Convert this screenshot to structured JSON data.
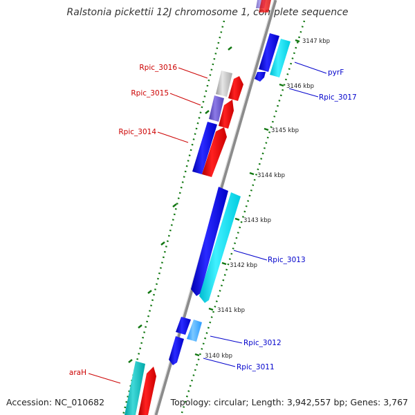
{
  "title": "Ralstonia pickettii 12J chromosome 1, complete sequence",
  "accession_text": "Accession: NC_010682",
  "summary_text": "Topology: circular; Length: 3,942,557 bp; Genes: 3,767",
  "colors": {
    "forward_label": "#cc0000",
    "reverse_label": "#0000cc",
    "backbone": "#8c8c8c",
    "tick": "#117711"
  },
  "tick_labels": [
    "3147 kbp",
    "3146 kbp",
    "3145 kbp",
    "3144 kbp",
    "3143 kbp",
    "3142 kbp",
    "3141 kbp",
    "3140 kbp"
  ],
  "gene_labels": {
    "rpic_3016": "Rpic_3016",
    "rpic_3015": "Rpic_3015",
    "rpic_3014": "Rpic_3014",
    "arah": "araH",
    "pyrf": "pyrF",
    "rpic_3017": "Rpic_3017",
    "rpic_3013": "Rpic_3013",
    "rpic_3012": "Rpic_3012",
    "rpic_3011": "Rpic_3011"
  }
}
